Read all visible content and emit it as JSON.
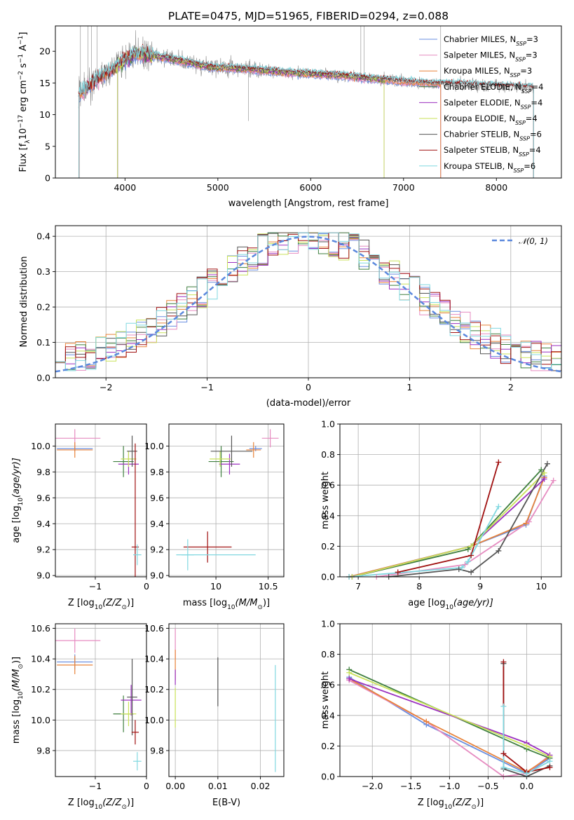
{
  "colors": {
    "Chabrier MILES": "#6a8fe0",
    "Salpeter MILES": "#e68bc0",
    "Kroupa MILES": "#e8833a",
    "Chabrier ELODIE": "#3f7f3f",
    "Salpeter ELODIE": "#9b30c0",
    "Kroupa ELODIE": "#c9e25a",
    "Chabrier STELIB": "#555555",
    "Salpeter STELIB": "#a01010",
    "Kroupa STELIB": "#80d8e0",
    "data": "#888888",
    "normal": "#5b88dd"
  },
  "chart_data": [
    {
      "id": "spectrum",
      "type": "line",
      "title": "PLATE=0475, MJD=51965, FIBERID=0294, z=0.088",
      "xlabel": "wavelength [Angstrom, rest frame]",
      "ylabel": "Flux [f",
      "ylabel_sub": "λ",
      "ylabel_rest": "10",
      "ylabel_exp": "−17",
      "ylabel_tail": " erg cm",
      "ylabel_exp2": "−2",
      "ylabel_tail2": " s",
      "ylabel_exp3": "−1",
      "ylabel_tail3": " A",
      "ylabel_exp4": "−1",
      "ylabel_tail4": "]",
      "xlim": [
        3250,
        8700
      ],
      "ylim": [
        0,
        24
      ],
      "xticks": [
        4000,
        5000,
        6000,
        7000,
        8000
      ],
      "yticks": [
        0,
        5,
        10,
        15,
        20
      ],
      "continuum": [
        [
          3500,
          13.2
        ],
        [
          3700,
          15.5
        ],
        [
          3900,
          17.5
        ],
        [
          4100,
          19.5
        ],
        [
          4300,
          19.3
        ],
        [
          4600,
          18.5
        ],
        [
          4900,
          17.5
        ],
        [
          5300,
          17.2
        ],
        [
          5800,
          16.6
        ],
        [
          6300,
          16.2
        ],
        [
          6700,
          15.6
        ],
        [
          7200,
          15.0
        ],
        [
          7700,
          14.7
        ],
        [
          8200,
          14.4
        ],
        [
          8400,
          14.3
        ]
      ],
      "legend": [
        {
          "label": "Chabrier MILES, N",
          "sub": "SSP",
          "tail": "=3",
          "series": "Chabrier MILES"
        },
        {
          "label": "Salpeter MILES, N",
          "sub": "SSP",
          "tail": "=3",
          "series": "Salpeter MILES"
        },
        {
          "label": "Kroupa MILES, N",
          "sub": "SSP",
          "tail": "=3",
          "series": "Kroupa MILES"
        },
        {
          "label": "Chabrier ELODIE, N",
          "sub": "SSP",
          "tail": "=4",
          "series": "Chabrier ELODIE"
        },
        {
          "label": "Salpeter ELODIE, N",
          "sub": "SSP",
          "tail": "=4",
          "series": "Salpeter ELODIE"
        },
        {
          "label": "Kroupa ELODIE, N",
          "sub": "SSP",
          "tail": "=4",
          "series": "Kroupa ELODIE"
        },
        {
          "label": "Chabrier STELIB, N",
          "sub": "SSP",
          "tail": "=6",
          "series": "Chabrier STELIB"
        },
        {
          "label": "Salpeter STELIB, N",
          "sub": "SSP",
          "tail": "=4",
          "series": "Salpeter STELIB"
        },
        {
          "label": "Kroupa STELIB, N",
          "sub": "SSP",
          "tail": "=6",
          "series": "Kroupa STELIB"
        }
      ]
    },
    {
      "id": "residuals",
      "type": "histogram",
      "xlabel": "(data-model)/error",
      "ylabel": "Normed distribution",
      "xlim": [
        -2.5,
        2.5
      ],
      "ylim": [
        0,
        0.43
      ],
      "xticks": [
        -2,
        -1,
        0,
        1,
        2
      ],
      "yticks": [
        0.0,
        0.1,
        0.2,
        0.3,
        0.4
      ],
      "legend": "𝒩(0, 1)",
      "series_order": [
        "Chabrier MILES",
        "Salpeter MILES",
        "Kroupa MILES",
        "Chabrier ELODIE",
        "Salpeter ELODIE",
        "Kroupa ELODIE",
        "Chabrier STELIB",
        "Salpeter STELIB",
        "Kroupa STELIB"
      ]
    },
    {
      "id": "age_vs_z",
      "type": "errorbar",
      "xlabel": "Z [log",
      "xlabel_sub": "10",
      "xlabel_tail": "(Z/Z",
      "xlabel_sub2": "⊙",
      "xlabel_tail2": ")]",
      "ylabel": "age  [log",
      "ylabel_sub": "10",
      "ylabel_tail": "(age/yr)]",
      "xlim": [
        -1.78,
        0.0
      ],
      "ylim": [
        8.99,
        10.17
      ],
      "xticks": [
        -1,
        0
      ],
      "yticks": [
        9.0,
        9.2,
        9.4,
        9.6,
        9.8,
        10.0
      ],
      "points": [
        {
          "series": "Chabrier MILES",
          "x": -1.4,
          "xerr": 0.35,
          "y": 9.98,
          "yerr": 0.02
        },
        {
          "series": "Salpeter MILES",
          "x": -1.4,
          "xerr": 0.5,
          "y": 10.06,
          "yerr": 0.07
        },
        {
          "series": "Kroupa MILES",
          "x": -1.4,
          "xerr": 0.35,
          "y": 9.97,
          "yerr": 0.06
        },
        {
          "series": "Chabrier ELODIE",
          "x": -0.45,
          "xerr": 0.2,
          "y": 9.88,
          "yerr": 0.12
        },
        {
          "series": "Salpeter ELODIE",
          "x": -0.35,
          "xerr": 0.2,
          "y": 9.86,
          "yerr": 0.08
        },
        {
          "series": "Kroupa ELODIE",
          "x": -0.35,
          "xerr": 0.15,
          "y": 9.9,
          "yerr": 0.06
        },
        {
          "series": "Chabrier STELIB",
          "x": -0.28,
          "xerr": 0.1,
          "y": 9.96,
          "yerr": 0.12
        },
        {
          "series": "Salpeter STELIB",
          "x": -0.22,
          "xerr": 0.07,
          "y": 9.22,
          "yerr": 0.8
        },
        {
          "series": "Kroupa STELIB",
          "x": -0.18,
          "xerr": 0.08,
          "y": 9.16,
          "yerr": 0.08
        }
      ]
    },
    {
      "id": "age_vs_mass",
      "type": "errorbar",
      "xlabel": "mass [log",
      "xlabel_sub": "10",
      "xlabel_tail": "(M/M",
      "xlabel_sub2": "⊙",
      "xlabel_tail2": ")]",
      "xlim": [
        9.55,
        10.65
      ],
      "ylim": [
        8.99,
        10.17
      ],
      "xticks": [
        10.0,
        10.5
      ],
      "yticks": [
        9.0,
        9.2,
        9.4,
        9.6,
        9.8,
        10.0
      ],
      "points": [
        {
          "series": "Chabrier MILES",
          "x": 10.38,
          "xerr": 0.06,
          "y": 9.98,
          "yerr": 0.02
        },
        {
          "series": "Salpeter MILES",
          "x": 10.52,
          "xerr": 0.08,
          "y": 10.06,
          "yerr": 0.07
        },
        {
          "series": "Kroupa MILES",
          "x": 10.36,
          "xerr": 0.07,
          "y": 9.97,
          "yerr": 0.06
        },
        {
          "series": "Chabrier ELODIE",
          "x": 10.05,
          "xerr": 0.12,
          "y": 9.88,
          "yerr": 0.12
        },
        {
          "series": "Salpeter ELODIE",
          "x": 10.13,
          "xerr": 0.1,
          "y": 9.86,
          "yerr": 0.08
        },
        {
          "series": "Kroupa ELODIE",
          "x": 10.04,
          "xerr": 0.1,
          "y": 9.9,
          "yerr": 0.06
        },
        {
          "series": "Chabrier STELIB",
          "x": 10.15,
          "xerr": 0.2,
          "y": 9.96,
          "yerr": 0.12
        },
        {
          "series": "Salpeter STELIB",
          "x": 9.92,
          "xerr": 0.23,
          "y": 9.22,
          "yerr": 0.12
        },
        {
          "series": "Kroupa STELIB",
          "x": 9.73,
          "xerr": 0.06,
          "y": 9.16,
          "yerr": 0.12
        },
        {
          "series": "Kroupa STELIB",
          "x": 10.0,
          "xerr": 0.38,
          "y": 9.16,
          "yerr": 0.0
        }
      ]
    },
    {
      "id": "weight_vs_age",
      "type": "line",
      "xlabel": "age  [log",
      "xlabel_sub": "10",
      "xlabel_tail": "(age/yr)]",
      "ylabel": "mass weight",
      "xlim": [
        6.7,
        10.33
      ],
      "ylim": [
        0,
        1.0
      ],
      "xticks": [
        7,
        8,
        9,
        10
      ],
      "yticks": [
        0.0,
        0.2,
        0.4,
        0.6,
        0.8,
        1.0
      ],
      "series": [
        {
          "name": "Chabrier MILES",
          "x": [
            6.85,
            8.85,
            9.75,
            10.05
          ],
          "y": [
            0.0,
            0.2,
            0.34,
            0.66
          ]
        },
        {
          "name": "Salpeter MILES",
          "x": [
            7.3,
            8.75,
            9.8,
            10.2
          ],
          "y": [
            0.0,
            0.08,
            0.36,
            0.63
          ]
        },
        {
          "name": "Kroupa MILES",
          "x": [
            6.85,
            8.85,
            9.75,
            10.05
          ],
          "y": [
            0.0,
            0.2,
            0.35,
            0.65
          ]
        },
        {
          "name": "Chabrier ELODIE",
          "x": [
            6.9,
            8.8,
            10.0
          ],
          "y": [
            0.0,
            0.18,
            0.7
          ]
        },
        {
          "name": "Salpeter ELODIE",
          "x": [
            6.9,
            8.85,
            10.05
          ],
          "y": [
            0.0,
            0.2,
            0.64
          ]
        },
        {
          "name": "Kroupa ELODIE",
          "x": [
            6.9,
            8.85,
            10.05
          ],
          "y": [
            0.0,
            0.2,
            0.68
          ]
        },
        {
          "name": "Chabrier STELIB",
          "x": [
            7.5,
            8.65,
            8.85,
            9.3,
            10.1
          ],
          "y": [
            0.0,
            0.05,
            0.03,
            0.17,
            0.74
          ]
        },
        {
          "name": "Salpeter STELIB",
          "x": [
            7.65,
            8.85,
            9.3
          ],
          "y": [
            0.03,
            0.14,
            0.75
          ]
        },
        {
          "name": "Kroupa STELIB",
          "x": [
            6.85,
            8.7,
            8.8,
            9.3
          ],
          "y": [
            0.0,
            0.06,
            0.1,
            0.46
          ]
        }
      ]
    },
    {
      "id": "mass_vs_z",
      "type": "errorbar",
      "xlabel": "Z [log",
      "xlabel_sub": "10",
      "xlabel_tail": "(Z/Z",
      "xlabel_sub2": "⊙",
      "xlabel_tail2": ")]",
      "ylabel": "mass [log",
      "ylabel_sub": "10",
      "ylabel_tail": "(M/M",
      "ylabel_sub2": "⊙",
      "ylabel_tail2": ")]",
      "xlim": [
        -1.78,
        0.0
      ],
      "ylim": [
        9.63,
        10.63
      ],
      "xticks": [
        -1,
        0
      ],
      "yticks": [
        9.8,
        10.0,
        10.2,
        10.4,
        10.6
      ],
      "points": [
        {
          "series": "Chabrier MILES",
          "x": -1.4,
          "xerr": 0.35,
          "y": 10.38,
          "yerr": 0.05
        },
        {
          "series": "Salpeter MILES",
          "x": -1.4,
          "xerr": 0.5,
          "y": 10.52,
          "yerr": 0.08
        },
        {
          "series": "Kroupa MILES",
          "x": -1.4,
          "xerr": 0.35,
          "y": 10.36,
          "yerr": 0.06
        },
        {
          "series": "Chabrier ELODIE",
          "x": -0.45,
          "xerr": 0.2,
          "y": 10.04,
          "yerr": 0.12
        },
        {
          "series": "Salpeter ELODIE",
          "x": -0.3,
          "xerr": 0.2,
          "y": 10.13,
          "yerr": 0.1
        },
        {
          "series": "Kroupa ELODIE",
          "x": -0.35,
          "xerr": 0.15,
          "y": 10.04,
          "yerr": 0.08
        },
        {
          "series": "Chabrier STELIB",
          "x": -0.28,
          "xerr": 0.1,
          "y": 10.15,
          "yerr": 0.25
        },
        {
          "series": "Salpeter STELIB",
          "x": -0.22,
          "xerr": 0.07,
          "y": 9.92,
          "yerr": 0.08
        },
        {
          "series": "Kroupa STELIB",
          "x": -0.18,
          "xerr": 0.08,
          "y": 9.73,
          "yerr": 0.06
        }
      ]
    },
    {
      "id": "mass_vs_ebv",
      "type": "errorbar",
      "xlabel": "E(B-V)",
      "xlim": [
        -0.0015,
        0.0255
      ],
      "ylim": [
        9.63,
        10.63
      ],
      "xticks": [
        0.0,
        0.01,
        0.02
      ],
      "yticks": [
        9.8,
        10.0,
        10.2,
        10.4,
        10.6
      ],
      "points": [
        {
          "series": "Salpeter MILES",
          "x": 0.0,
          "xerr": 0.0,
          "y": 10.5,
          "yerr": 0.1
        },
        {
          "series": "Kroupa MILES",
          "x": 0.0,
          "xerr": 0.0,
          "y": 10.36,
          "yerr": 0.1
        },
        {
          "series": "Salpeter ELODIE",
          "x": 0.0,
          "xerr": 0.0,
          "y": 10.28,
          "yerr": 0.05
        },
        {
          "series": "Kroupa ELODIE",
          "x": 0.0,
          "xerr": 0.0,
          "y": 10.08,
          "yerr": 0.13
        },
        {
          "series": "Chabrier STELIB",
          "x": 0.01,
          "xerr": 0.0,
          "y": 10.25,
          "yerr": 0.16
        },
        {
          "series": "Kroupa STELIB",
          "x": 0.0235,
          "xerr": 0.0,
          "y": 10.01,
          "yerr": 0.35
        }
      ]
    },
    {
      "id": "weight_vs_z",
      "type": "line",
      "xlabel": "Z [log",
      "xlabel_sub": "10",
      "xlabel_tail": "(Z/Z",
      "xlabel_sub2": "⊙",
      "xlabel_tail2": ")]",
      "ylabel": "mass weight",
      "xlim": [
        -2.42,
        0.45
      ],
      "ylim": [
        0,
        1.0
      ],
      "xticks": [
        -2.0,
        -1.5,
        -1.0,
        -0.5,
        0.0
      ],
      "yticks": [
        0.0,
        0.2,
        0.4,
        0.6,
        0.8,
        1.0
      ],
      "series": [
        {
          "name": "Chabrier MILES",
          "x": [
            -2.3,
            -1.3,
            0.0,
            0.3
          ],
          "y": [
            0.65,
            0.34,
            0.02,
            0.12
          ]
        },
        {
          "name": "Salpeter MILES",
          "x": [
            -2.3,
            -1.3,
            -0.3,
            0.0,
            0.3
          ],
          "y": [
            0.63,
            0.36,
            0.0,
            0.02,
            0.14
          ]
        },
        {
          "name": "Kroupa MILES",
          "x": [
            -2.3,
            -1.3,
            0.0,
            0.3
          ],
          "y": [
            0.64,
            0.36,
            0.03,
            0.13
          ]
        },
        {
          "name": "Chabrier ELODIE",
          "x": [
            -2.3,
            0.0,
            0.3
          ],
          "y": [
            0.7,
            0.18,
            0.12
          ]
        },
        {
          "name": "Salpeter ELODIE",
          "x": [
            -2.3,
            0.0,
            0.3
          ],
          "y": [
            0.64,
            0.22,
            0.14
          ]
        },
        {
          "name": "Kroupa ELODIE",
          "x": [
            -2.3,
            0.0,
            0.3
          ],
          "y": [
            0.68,
            0.2,
            0.13
          ]
        },
        {
          "name": "Chabrier STELIB",
          "x": [
            -0.3,
            -0.3,
            0.0,
            0.3
          ],
          "y": [
            0.74,
            0.05,
            0.0,
            0.07
          ]
        },
        {
          "name": "Salpeter STELIB",
          "x": [
            -0.3,
            -0.3,
            0.0,
            0.3
          ],
          "y": [
            0.75,
            0.15,
            0.03,
            0.06
          ]
        },
        {
          "name": "Kroupa STELIB",
          "x": [
            -0.3,
            -0.3,
            0.0,
            0.3
          ],
          "y": [
            0.46,
            0.06,
            0.02,
            0.1
          ]
        }
      ]
    }
  ]
}
